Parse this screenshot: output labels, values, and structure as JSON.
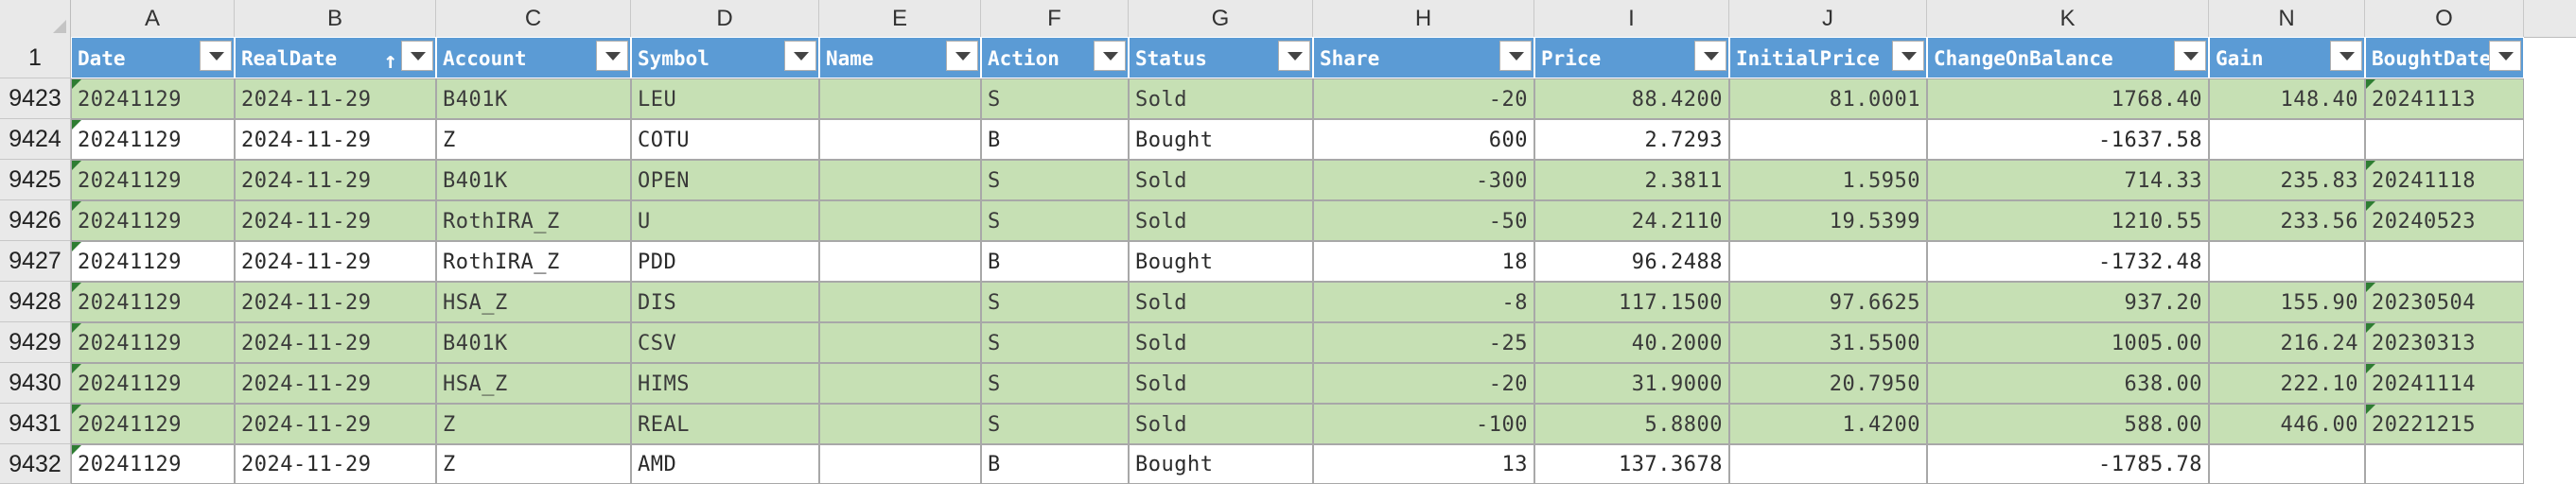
{
  "sheet": {
    "column_letters": [
      "A",
      "B",
      "C",
      "D",
      "E",
      "F",
      "G",
      "H",
      "I",
      "J",
      "K",
      "N",
      "O"
    ],
    "header_row_number": "1",
    "headers": [
      "Date",
      "RealDate",
      "Account",
      "Symbol",
      "Name",
      "Action",
      "Status",
      "Share",
      "Price",
      "InitialPrice",
      "ChangeOnBalance",
      "Gain",
      "BoughtDate"
    ],
    "sort_icon": "sort-ascending-icon",
    "colors": {
      "header_fill": "#5b9bd5",
      "sold_fill": "#c6e0b4",
      "bought_fill": "#ffffff",
      "error_marker": "#2e7d32"
    },
    "rows": [
      {
        "num": "9423",
        "status_fill": "sold",
        "cells": [
          "20241129",
          "2024-11-29",
          "B401K",
          "LEU",
          "",
          "S",
          "Sold",
          "-20",
          "88.4200",
          "81.0001",
          "1768.40",
          "148.40",
          "20241113"
        ]
      },
      {
        "num": "9424",
        "status_fill": "bought",
        "cells": [
          "20241129",
          "2024-11-29",
          "Z",
          "COTU",
          "",
          "B",
          "Bought",
          "600",
          "2.7293",
          "",
          "-1637.58",
          "",
          ""
        ]
      },
      {
        "num": "9425",
        "status_fill": "sold",
        "cells": [
          "20241129",
          "2024-11-29",
          "B401K",
          "OPEN",
          "",
          "S",
          "Sold",
          "-300",
          "2.3811",
          "1.5950",
          "714.33",
          "235.83",
          "20241118"
        ]
      },
      {
        "num": "9426",
        "status_fill": "sold",
        "cells": [
          "20241129",
          "2024-11-29",
          "RothIRA_Z",
          "U",
          "",
          "S",
          "Sold",
          "-50",
          "24.2110",
          "19.5399",
          "1210.55",
          "233.56",
          "20240523"
        ]
      },
      {
        "num": "9427",
        "status_fill": "bought",
        "cells": [
          "20241129",
          "2024-11-29",
          "RothIRA_Z",
          "PDD",
          "",
          "B",
          "Bought",
          "18",
          "96.2488",
          "",
          "-1732.48",
          "",
          ""
        ]
      },
      {
        "num": "9428",
        "status_fill": "sold",
        "cells": [
          "20241129",
          "2024-11-29",
          "HSA_Z",
          "DIS",
          "",
          "S",
          "Sold",
          "-8",
          "117.1500",
          "97.6625",
          "937.20",
          "155.90",
          "20230504"
        ]
      },
      {
        "num": "9429",
        "status_fill": "sold",
        "cells": [
          "20241129",
          "2024-11-29",
          "B401K",
          "CSV",
          "",
          "S",
          "Sold",
          "-25",
          "40.2000",
          "31.5500",
          "1005.00",
          "216.24",
          "20230313"
        ]
      },
      {
        "num": "9430",
        "status_fill": "sold",
        "cells": [
          "20241129",
          "2024-11-29",
          "HSA_Z",
          "HIMS",
          "",
          "S",
          "Sold",
          "-20",
          "31.9000",
          "20.7950",
          "638.00",
          "222.10",
          "20241114"
        ]
      },
      {
        "num": "9431",
        "status_fill": "sold",
        "cells": [
          "20241129",
          "2024-11-29",
          "Z",
          "REAL",
          "",
          "S",
          "Sold",
          "-100",
          "5.8800",
          "1.4200",
          "588.00",
          "446.00",
          "20221215"
        ]
      },
      {
        "num": "9432",
        "status_fill": "bought",
        "cells": [
          "20241129",
          "2024-11-29",
          "Z",
          "AMD",
          "",
          "B",
          "Bought",
          "13",
          "137.3678",
          "",
          "-1785.78",
          "",
          ""
        ]
      }
    ]
  }
}
